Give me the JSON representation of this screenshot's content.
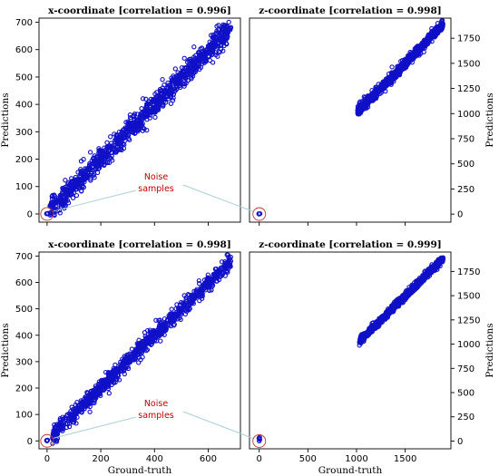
{
  "annotation": {
    "line1": "Noise",
    "line2": "samples"
  },
  "colors": {
    "points": "#1010c8",
    "highlight": "#c0392b",
    "leader": "#a8cfd4",
    "note": "#c00000"
  },
  "chart_data": [
    {
      "type": "scatter",
      "title": "x-coordinate [correlation = 0.996]",
      "xlabel": "",
      "ylabel": "Predictions",
      "xlim": [
        -30,
        720
      ],
      "ylim": [
        -30,
        715
      ],
      "xticks": [
        0,
        200,
        400,
        600
      ],
      "show_xtick_labels": false,
      "yticks": [
        0,
        100,
        200,
        300,
        400,
        500,
        600,
        700
      ],
      "y_axis_side": "left",
      "trend": {
        "x_start": 10,
        "x_end": 685,
        "slope": 0.99,
        "intercept": 2,
        "noise": 28,
        "count": 1100
      },
      "noise_samples": [
        [
          0,
          0
        ],
        [
          3,
          2
        ],
        [
          -2,
          1
        ]
      ],
      "highlight": [
        0,
        0
      ]
    },
    {
      "type": "scatter",
      "title": "z-coordinate [correlation = 0.998]",
      "xlabel": "",
      "ylabel": "Predictions",
      "xlim": [
        -100,
        1970
      ],
      "ylim": [
        -80,
        1950
      ],
      "xticks": [
        0,
        500,
        1000,
        1500
      ],
      "show_xtick_labels": false,
      "yticks": [
        0,
        250,
        500,
        750,
        1000,
        1250,
        1500,
        1750
      ],
      "y_axis_side": "right",
      "trend": {
        "x_start": 1010,
        "x_end": 1890,
        "slope": 0.99,
        "intercept": 15,
        "noise": 30,
        "count": 1000
      },
      "noise_samples": [
        [
          0,
          0
        ],
        [
          8,
          5
        ],
        [
          -5,
          3
        ]
      ],
      "highlight": [
        0,
        0
      ]
    },
    {
      "type": "scatter",
      "title": "x-coordinate [correlation = 0.998]",
      "xlabel": "Ground-truth",
      "ylabel": "Predictions",
      "xlim": [
        -30,
        720
      ],
      "ylim": [
        -30,
        715
      ],
      "xticks": [
        0,
        200,
        400,
        600
      ],
      "show_xtick_labels": true,
      "yticks": [
        0,
        100,
        200,
        300,
        400,
        500,
        600,
        700
      ],
      "y_axis_side": "left",
      "trend": {
        "x_start": 20,
        "x_end": 685,
        "slope": 0.99,
        "intercept": 3,
        "noise": 20,
        "count": 1000
      },
      "noise_samples": [
        [
          0,
          0
        ],
        [
          2,
          3
        ],
        [
          -2,
          2
        ]
      ],
      "highlight": [
        0,
        0
      ]
    },
    {
      "type": "scatter",
      "title": "z-coordinate [correlation = 0.999]",
      "xlabel": "Ground-truth",
      "ylabel": "Predictions",
      "xlim": [
        -100,
        1970
      ],
      "ylim": [
        -80,
        1950
      ],
      "xticks": [
        0,
        500,
        1000,
        1500
      ],
      "show_xtick_labels": true,
      "yticks": [
        0,
        250,
        500,
        750,
        1000,
        1250,
        1500,
        1750
      ],
      "y_axis_side": "right",
      "trend": {
        "x_start": 1030,
        "x_end": 1890,
        "slope": 0.99,
        "intercept": 12,
        "noise": 22,
        "count": 1000
      },
      "noise_samples": [
        [
          0,
          0
        ],
        [
          5,
          15
        ],
        [
          -3,
          30
        ],
        [
          4,
          40
        ],
        [
          0,
          25
        ]
      ],
      "highlight": [
        0,
        0
      ]
    }
  ]
}
